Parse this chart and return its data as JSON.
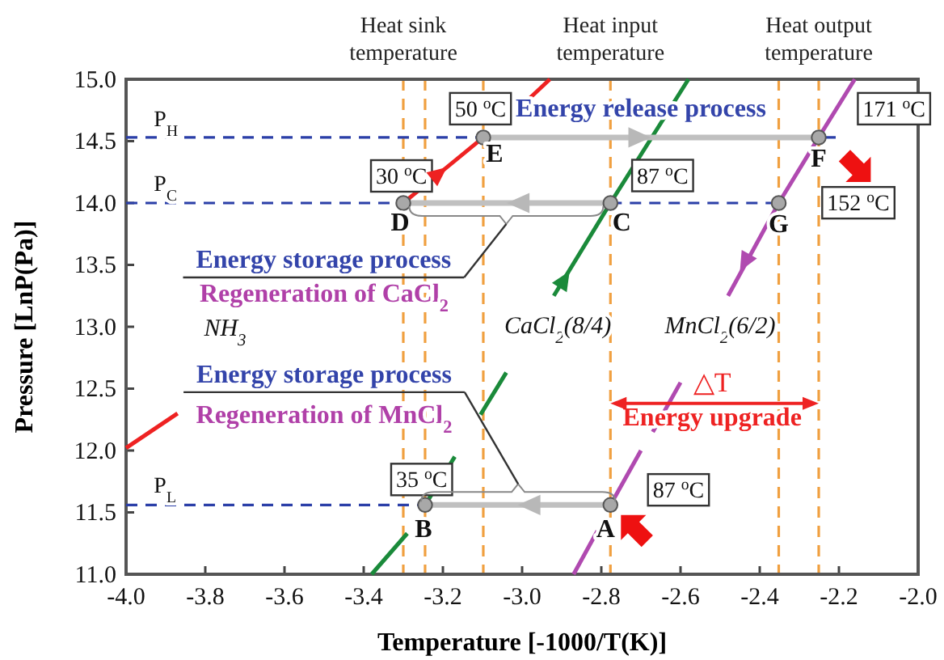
{
  "chart_data": {
    "type": "line",
    "xlabel": "Temperature [-1000/T(K)]",
    "ylabel": "Pressure  [LnP(Pa)]",
    "xlim": [
      -4.0,
      -2.0
    ],
    "ylim": [
      11.0,
      15.0
    ],
    "xticks": [
      {
        "value": -4.0,
        "label": "-4.0"
      },
      {
        "value": -3.8,
        "label": "-3.8"
      },
      {
        "value": -3.6,
        "label": "-3.6"
      },
      {
        "value": -3.4,
        "label": "-3.4"
      },
      {
        "value": -3.2,
        "label": "-3.2"
      },
      {
        "value": -3.0,
        "label": "-3.0"
      },
      {
        "value": -2.8,
        "label": "-2.8"
      },
      {
        "value": -2.6,
        "label": "-2.6"
      },
      {
        "value": -2.4,
        "label": "-2.4"
      },
      {
        "value": -2.2,
        "label": "-2.2"
      },
      {
        "value": -2.0,
        "label": "-2.0"
      }
    ],
    "yticks": [
      {
        "value": 11.0,
        "label": "11.0"
      },
      {
        "value": 11.5,
        "label": "11.5"
      },
      {
        "value": 12.0,
        "label": "12.0"
      },
      {
        "value": 12.5,
        "label": "12.5"
      },
      {
        "value": 13.0,
        "label": "13.0"
      },
      {
        "value": 13.5,
        "label": "13.5"
      },
      {
        "value": 14.0,
        "label": "14.0"
      },
      {
        "value": 14.5,
        "label": "14.5"
      },
      {
        "value": 15.0,
        "label": "15.0"
      }
    ],
    "grid": false,
    "series": [
      {
        "color": "#2b3fa8",
        "line_style": "dashed",
        "x": [
          -4.0,
          -2.2
        ],
        "values": [
          14.53,
          14.53
        ]
      },
      {
        "color": "#2b3fa8",
        "line_style": "dashed",
        "x": [
          -4.0,
          -3.3,
          -3.29,
          -2.777,
          -2.352
        ],
        "values": [
          14.0,
          14.0,
          null,
          14.0,
          14.0
        ]
      },
      {
        "color": "#2b3fa8",
        "line_style": "dashed",
        "x": [
          -4.0,
          -3.245
        ],
        "values": [
          11.56,
          11.56
        ]
      },
      {
        "color": "#ee2222",
        "line_style": "solid",
        "x": [
          -4.0,
          -3.87,
          -3.86,
          -3.3,
          -3.098,
          -3.0,
          -2.98,
          -2.93
        ],
        "values": [
          12.02,
          12.3,
          null,
          14.0,
          14.53,
          null,
          14.85,
          15.0
        ]
      },
      {
        "color": "#1a8a3a",
        "line_style": "solid",
        "x": [
          -3.38,
          -3.29,
          -3.28,
          -3.245,
          -3.17,
          -3.16,
          -3.105,
          -3.04,
          -3.0,
          -2.92,
          -2.777,
          -2.58
        ],
        "values": [
          11.0,
          11.33,
          null,
          11.56,
          11.95,
          null,
          12.29,
          12.63,
          null,
          13.25,
          14.0,
          15.0
        ]
      },
      {
        "color": "#b04ab0",
        "line_style": "solid",
        "x": [
          -2.87,
          -2.81,
          -2.8,
          -2.777,
          -2.7,
          -2.69,
          -2.67,
          -2.6,
          -2.55,
          -2.48,
          -2.352,
          -2.251,
          -2.16
        ],
        "values": [
          11.0,
          11.35,
          null,
          11.56,
          12.0,
          null,
          12.15,
          12.55,
          null,
          13.25,
          14.0,
          14.53,
          15.0
        ]
      },
      {
        "color": "#c0c0c0",
        "line_style": "solid",
        "x": [
          -3.098,
          -2.251
        ],
        "values": [
          14.53,
          14.53
        ]
      },
      {
        "color": "#c0c0c0",
        "line_style": "solid",
        "x": [
          -2.777,
          -3.3
        ],
        "values": [
          14.0,
          14.0
        ]
      },
      {
        "color": "#c0c0c0",
        "line_style": "solid",
        "x": [
          -2.777,
          -3.245
        ],
        "values": [
          11.56,
          11.56
        ]
      },
      {
        "type": "scatter",
        "color": "#a8a8a8",
        "marker": "circle",
        "x": [
          -3.3,
          -3.098,
          -2.777,
          -2.251,
          -2.352,
          -3.245,
          -2.777
        ],
        "values": [
          14.0,
          14.53,
          14.0,
          14.53,
          14.0,
          11.56,
          11.56
        ]
      }
    ],
    "ref_lines": [
      {
        "axis": "x",
        "value": -3.3,
        "label": "Heat sink temperature",
        "color": "#f0a040",
        "line_style": "dashed"
      },
      {
        "axis": "x",
        "value": -3.245,
        "color": "#f0a040",
        "line_style": "dashed"
      },
      {
        "axis": "x",
        "value": -3.098,
        "color": "#f0a040",
        "line_style": "dashed"
      },
      {
        "axis": "x",
        "value": -2.777,
        "label": "Heat input temperature",
        "color": "#f0a040",
        "line_style": "dashed"
      },
      {
        "axis": "x",
        "value": -2.352,
        "color": "#f0a040",
        "line_style": "dashed"
      },
      {
        "axis": "x",
        "value": -2.251,
        "label": "Heat output temperature",
        "color": "#f0a040",
        "line_style": "dashed"
      }
    ],
    "annotations": [
      "P$_{H}$",
      "P$_{C}$",
      "P$_{L}$",
      "50 $^{o}$C",
      {
        "text": "30 $^{o}$C",
        "x": -3.3,
        "y": 14.0
      },
      "87 $^{o}$C",
      "171 $^{o}$C",
      "152 $^{o}$C",
      {
        "text": "35 $^{o}$C",
        "x": -3.245,
        "y": 11.56
      },
      "87 $^{o}$C",
      {
        "text": "D",
        "x": -3.3,
        "y": 14.0
      },
      {
        "text": "E",
        "x": -3.098,
        "y": 14.53
      },
      {
        "text": "C",
        "x": -2.777,
        "y": 14.0
      },
      {
        "text": "F",
        "x": -2.251,
        "y": 14.53
      },
      {
        "text": "G",
        "x": -2.352,
        "y": 14.0
      },
      {
        "text": "B",
        "x": -3.245,
        "y": 11.56
      },
      {
        "text": "A",
        "x": -2.777,
        "y": 11.56
      },
      "Energy release process",
      {
        "text": "Energy storage process",
        "x": -3.04,
        "y": 14.0
      },
      "Regeneration of CaCl$_{2}$",
      "NH$_{3}$",
      "CaCl$_{2}$(8/4)",
      "MnCl$_{2}$(6/2)",
      "Energy storage process",
      "Regeneration of MnCl$_{2}$",
      "△T",
      "Energy upgrade"
    ]
  }
}
